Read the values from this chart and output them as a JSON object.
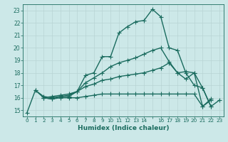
{
  "xlabel": "Humidex (Indice chaleur)",
  "ylabel": "",
  "bg_color": "#cce8e8",
  "grid_color": "#b8d4d4",
  "line_color": "#1a6b5e",
  "xlim": [
    -0.5,
    23.5
  ],
  "ylim": [
    14.5,
    23.5
  ],
  "yticks": [
    15,
    16,
    17,
    18,
    19,
    20,
    21,
    22,
    23
  ],
  "xticks": [
    0,
    1,
    2,
    3,
    4,
    5,
    6,
    7,
    8,
    9,
    10,
    11,
    12,
    13,
    14,
    15,
    16,
    17,
    18,
    19,
    20,
    21,
    22,
    23
  ],
  "xtick_labels": [
    "0",
    "1",
    "2",
    "3",
    "4",
    "5",
    "6",
    "7",
    "8",
    "9",
    "10",
    "11",
    "12",
    "13",
    "14",
    "",
    "16",
    "17",
    "18",
    "19",
    "20",
    "21",
    "22",
    "23"
  ],
  "lines": [
    {
      "x": [
        0,
        1,
        2,
        3,
        4,
        5,
        6,
        7,
        8,
        9,
        10,
        11,
        12,
        13,
        14,
        15,
        16,
        17,
        18,
        19,
        20,
        21,
        22,
        23
      ],
      "y": [
        14.8,
        16.6,
        16.0,
        15.9,
        16.1,
        16.1,
        16.5,
        17.8,
        18.0,
        19.3,
        19.3,
        21.2,
        21.7,
        22.1,
        22.2,
        23.1,
        22.5,
        20.0,
        19.8,
        18.0,
        17.0,
        16.8,
        15.3,
        15.8
      ],
      "marker": "+",
      "markersize": 4,
      "linewidth": 1.0
    },
    {
      "x": [
        1,
        2,
        3,
        4,
        5,
        6,
        7,
        8,
        9,
        10,
        11,
        12,
        13,
        14,
        15,
        16,
        17,
        18,
        19,
        20,
        21,
        22
      ],
      "y": [
        16.6,
        16.1,
        16.0,
        16.1,
        16.2,
        16.5,
        17.2,
        17.6,
        18.0,
        18.5,
        18.8,
        19.0,
        19.2,
        19.5,
        19.8,
        20.0,
        18.9,
        18.0,
        17.5,
        18.0,
        16.8,
        15.3
      ],
      "marker": "+",
      "markersize": 4,
      "linewidth": 1.0
    },
    {
      "x": [
        2,
        3,
        4,
        5,
        6,
        7,
        8,
        9,
        10,
        11,
        12,
        13,
        14,
        15,
        16,
        17,
        18,
        19,
        20,
        21,
        22
      ],
      "y": [
        16.0,
        16.1,
        16.2,
        16.3,
        16.5,
        16.9,
        17.1,
        17.4,
        17.5,
        17.7,
        17.8,
        17.9,
        18.0,
        18.2,
        18.4,
        18.8,
        18.0,
        18.1,
        18.0,
        15.3,
        15.9
      ],
      "marker": "+",
      "markersize": 4,
      "linewidth": 1.0
    },
    {
      "x": [
        2,
        3,
        4,
        5,
        6,
        7,
        8,
        9,
        10,
        11,
        12,
        13,
        14,
        15,
        16,
        17,
        18,
        19,
        20,
        21,
        22
      ],
      "y": [
        16.0,
        15.9,
        16.0,
        16.0,
        16.0,
        16.1,
        16.2,
        16.3,
        16.3,
        16.3,
        16.3,
        16.3,
        16.3,
        16.3,
        16.3,
        16.3,
        16.3,
        16.3,
        16.3,
        15.3,
        15.8
      ],
      "marker": "+",
      "markersize": 4,
      "linewidth": 1.0
    }
  ]
}
